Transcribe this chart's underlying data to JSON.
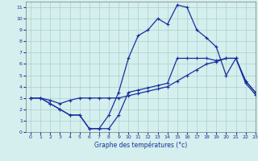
{
  "title": "Graphe des températures (°c)",
  "bg_color": "#d4efed",
  "line_color": "#1a2f9e",
  "xlim": [
    -0.5,
    23
  ],
  "ylim": [
    0,
    11.5
  ],
  "xticks": [
    0,
    1,
    2,
    3,
    4,
    5,
    6,
    7,
    8,
    9,
    10,
    11,
    12,
    13,
    14,
    15,
    16,
    17,
    18,
    19,
    20,
    21,
    22,
    23
  ],
  "yticks": [
    0,
    1,
    2,
    3,
    4,
    5,
    6,
    7,
    8,
    9,
    10,
    11
  ],
  "line1_x": [
    0,
    1,
    2,
    3,
    4,
    5,
    6,
    7,
    8,
    9,
    10,
    11,
    12,
    13,
    14,
    15,
    16,
    17,
    18,
    19,
    20,
    21,
    22,
    23
  ],
  "line1_y": [
    3.0,
    3.0,
    2.5,
    2.0,
    1.5,
    1.5,
    0.3,
    0.3,
    0.3,
    1.5,
    3.5,
    3.7,
    3.9,
    4.1,
    4.3,
    6.5,
    6.5,
    6.5,
    6.5,
    6.3,
    6.5,
    6.5,
    4.5,
    3.5
  ],
  "line2_x": [
    0,
    1,
    2,
    3,
    4,
    5,
    6,
    7,
    8,
    9,
    10,
    11,
    12,
    13,
    14,
    15,
    16,
    17,
    18,
    19,
    20,
    21,
    22,
    23
  ],
  "line2_y": [
    3.0,
    3.0,
    2.8,
    2.5,
    2.8,
    3.0,
    3.0,
    3.0,
    3.0,
    3.0,
    3.2,
    3.4,
    3.6,
    3.8,
    4.0,
    4.5,
    5.0,
    5.5,
    6.0,
    6.2,
    6.5,
    6.5,
    4.3,
    3.3
  ],
  "line3_x": [
    0,
    1,
    2,
    3,
    4,
    5,
    6,
    7,
    8,
    9,
    10,
    11,
    12,
    13,
    14,
    15,
    16,
    17,
    18,
    19,
    20,
    21,
    22,
    23
  ],
  "line3_y": [
    3.0,
    3.0,
    2.5,
    2.0,
    1.5,
    1.5,
    0.3,
    0.3,
    1.5,
    3.5,
    6.5,
    8.5,
    9.0,
    10.0,
    9.5,
    11.2,
    11.0,
    9.0,
    8.3,
    7.5,
    5.0,
    6.5,
    4.5,
    3.5
  ]
}
